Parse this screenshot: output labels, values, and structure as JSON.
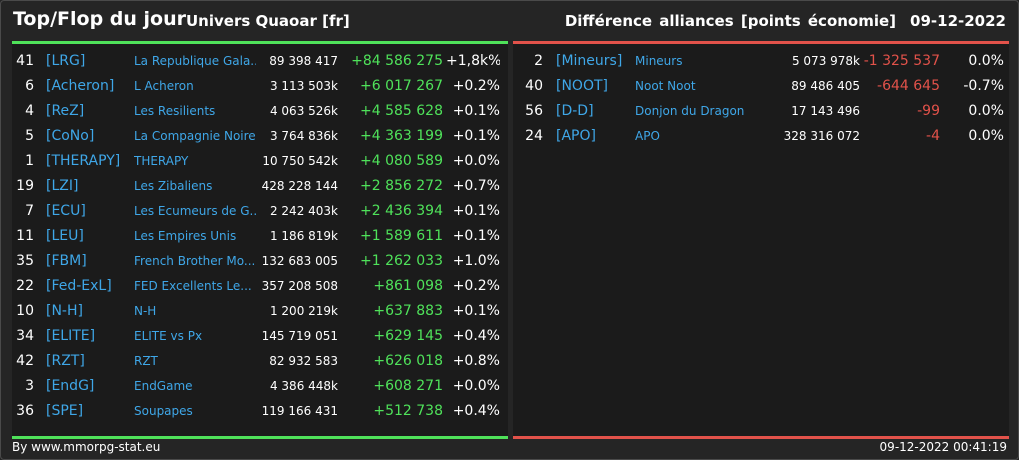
{
  "header": {
    "title": "Top/Flop du jour",
    "universe": "Univers Quaoar [fr]",
    "category": "Différence alliances [points économie]",
    "date": "09-12-2022"
  },
  "colors": {
    "accent_positive": "#4fe25a",
    "accent_negative": "#e2524a",
    "link": "#3fa7e8"
  },
  "top": [
    {
      "rank": "41",
      "tag": "[LRG]",
      "name": "La Republique Gala...",
      "points": "89 398 417",
      "diff": "+84 586 275",
      "pct": "+1,8k%"
    },
    {
      "rank": "6",
      "tag": "[Acheron]",
      "name": "L Acheron",
      "points": "3 113 503k",
      "diff": "+6 017 267",
      "pct": "+0.2%"
    },
    {
      "rank": "4",
      "tag": "[ReZ]",
      "name": "Les Resilients",
      "points": "4 063 526k",
      "diff": "+4 585 628",
      "pct": "+0.1%"
    },
    {
      "rank": "5",
      "tag": "[CoNo]",
      "name": "La Compagnie Noire",
      "points": "3 764 836k",
      "diff": "+4 363 199",
      "pct": "+0.1%"
    },
    {
      "rank": "1",
      "tag": "[THERAPY]",
      "name": "THERAPY",
      "points": "10 750 542k",
      "diff": "+4 080 589",
      "pct": "+0.0%"
    },
    {
      "rank": "19",
      "tag": "[LZI]",
      "name": "Les Zibaliens",
      "points": "428 228 144",
      "diff": "+2 856 272",
      "pct": "+0.7%"
    },
    {
      "rank": "7",
      "tag": "[ECU]",
      "name": "Les Ecumeurs de G...",
      "points": "2 242 403k",
      "diff": "+2 436 394",
      "pct": "+0.1%"
    },
    {
      "rank": "11",
      "tag": "[LEU]",
      "name": "Les Empires Unis",
      "points": "1 186 819k",
      "diff": "+1 589 611",
      "pct": "+0.1%"
    },
    {
      "rank": "35",
      "tag": "[FBM]",
      "name": "French Brother Mo...",
      "points": "132 683 005",
      "diff": "+1 262 033",
      "pct": "+1.0%"
    },
    {
      "rank": "22",
      "tag": "[Fed-ExL]",
      "name": "FED Excellents Le...",
      "points": "357 208 508",
      "diff": "+861 098",
      "pct": "+0.2%"
    },
    {
      "rank": "10",
      "tag": "[N-H]",
      "name": "N-H",
      "points": "1 200 219k",
      "diff": "+637 883",
      "pct": "+0.1%"
    },
    {
      "rank": "34",
      "tag": "[ELITE]",
      "name": "ELITE vs Px",
      "points": "145 719 051",
      "diff": "+629 145",
      "pct": "+0.4%"
    },
    {
      "rank": "42",
      "tag": "[RZT]",
      "name": "RZT",
      "points": "82 932 583",
      "diff": "+626 018",
      "pct": "+0.8%"
    },
    {
      "rank": "3",
      "tag": "[EndG]",
      "name": "EndGame",
      "points": "4 386 448k",
      "diff": "+608 271",
      "pct": "+0.0%"
    },
    {
      "rank": "36",
      "tag": "[SPE]",
      "name": "Soupapes",
      "points": "119 166 431",
      "diff": "+512 738",
      "pct": "+0.4%"
    }
  ],
  "flop": [
    {
      "rank": "2",
      "tag": "[Mineurs]",
      "name": "Mineurs",
      "points": "5 073 978k",
      "diff": "-1 325 537",
      "pct": "0.0%"
    },
    {
      "rank": "40",
      "tag": "[NOOT]",
      "name": "Noot Noot",
      "points": "89 486 405",
      "diff": "-644 645",
      "pct": "-0.7%"
    },
    {
      "rank": "56",
      "tag": "[D-D]",
      "name": "Donjon du Dragon",
      "points": "17 143 496",
      "diff": "-99",
      "pct": "0.0%"
    },
    {
      "rank": "24",
      "tag": "[APO]",
      "name": "APO",
      "points": "328 316 072",
      "diff": "-4",
      "pct": "0.0%"
    }
  ],
  "footer": {
    "source": "By www.mmorpg-stat.eu",
    "timestamp": "09-12-2022 00:41:19"
  }
}
